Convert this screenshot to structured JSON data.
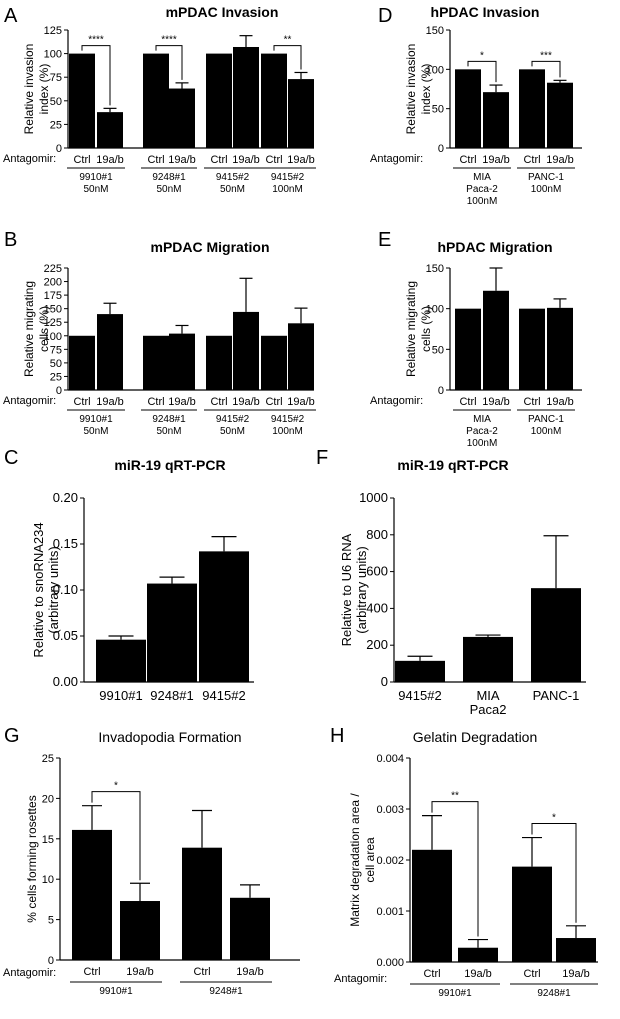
{
  "figure": {
    "antagomir_label": "Antagomir:"
  },
  "chart_data": [
    {
      "panel": "A",
      "type": "bar",
      "title": "mPDAC Invasion",
      "ylabel": "Relative invasion index (%)",
      "ylim": [
        0,
        125
      ],
      "yticks": [
        0,
        25,
        50,
        75,
        100,
        125
      ],
      "categories": [
        "Ctrl",
        "19a/b",
        "Ctrl",
        "19a/b",
        "Ctrl",
        "19a/b",
        "Ctrl",
        "19a/b"
      ],
      "values": [
        100,
        38,
        100,
        63,
        100,
        107,
        100,
        73
      ],
      "errors": [
        0,
        4,
        0,
        6,
        0,
        12,
        0,
        7
      ],
      "groups": [
        {
          "label": "9910#1 50nM",
          "sig": "****"
        },
        {
          "label": "9248#1 50nM",
          "sig": "****"
        },
        {
          "label": "9415#2 50nM",
          "sig": ""
        },
        {
          "label": "9415#2 100nM",
          "sig": "**"
        }
      ]
    },
    {
      "panel": "D",
      "type": "bar",
      "title": "hPDAC Invasion",
      "ylabel": "Relative invasion index (%)",
      "ylim": [
        0,
        150
      ],
      "yticks": [
        0,
        50,
        100,
        150
      ],
      "categories": [
        "Ctrl",
        "19a/b",
        "Ctrl",
        "19a/b"
      ],
      "values": [
        100,
        71,
        100,
        83
      ],
      "errors": [
        0,
        9,
        0,
        3
      ],
      "groups": [
        {
          "label": "MIA Paca-2 100nM",
          "sig": "*"
        },
        {
          "label": "PANC-1 100nM",
          "sig": "***"
        }
      ]
    },
    {
      "panel": "B",
      "type": "bar",
      "title": "mPDAC Migration",
      "ylabel": "Relative migrating cells (%)",
      "ylim": [
        0,
        225
      ],
      "yticks": [
        0,
        25,
        50,
        75,
        100,
        125,
        150,
        175,
        200,
        225
      ],
      "categories": [
        "Ctrl",
        "19a/b",
        "Ctrl",
        "19a/b",
        "Ctrl",
        "19a/b",
        "Ctrl",
        "19a/b"
      ],
      "values": [
        100,
        140,
        100,
        104,
        100,
        144,
        100,
        123
      ],
      "errors": [
        0,
        20,
        0,
        15,
        0,
        62,
        0,
        28
      ],
      "groups": [
        {
          "label": "9910#1 50nM",
          "sig": ""
        },
        {
          "label": "9248#1 50nM",
          "sig": ""
        },
        {
          "label": "9415#2 50nM",
          "sig": ""
        },
        {
          "label": "9415#2 100nM",
          "sig": ""
        }
      ]
    },
    {
      "panel": "E",
      "type": "bar",
      "title": "hPDAC Migration",
      "ylabel": "Relative migrating cells (%)",
      "ylim": [
        0,
        150
      ],
      "yticks": [
        0,
        50,
        100,
        150
      ],
      "categories": [
        "Ctrl",
        "19a/b",
        "Ctrl",
        "19a/b"
      ],
      "values": [
        100,
        122,
        100,
        101
      ],
      "errors": [
        0,
        28,
        0,
        11
      ],
      "groups": [
        {
          "label": "MIA Paca-2 100nM",
          "sig": ""
        },
        {
          "label": "PANC-1 100nM",
          "sig": ""
        }
      ]
    },
    {
      "panel": "C",
      "type": "bar",
      "title": "miR-19 qRT-PCR",
      "ylabel": "Relative to snoRNA234 (arbitrary units)",
      "ylim": [
        0,
        0.2
      ],
      "yticks": [
        0,
        0.05,
        0.1,
        0.15,
        0.2
      ],
      "ytick_labels": [
        "0.00",
        "0.05",
        "0.10",
        "0.15",
        "0.20"
      ],
      "categories": [
        "9910#1",
        "9248#1",
        "9415#2"
      ],
      "values": [
        0.046,
        0.107,
        0.142
      ],
      "errors": [
        0.004,
        0.007,
        0.016
      ]
    },
    {
      "panel": "F",
      "type": "bar",
      "title": "miR-19 qRT-PCR",
      "ylabel": "Relative to U6 RNA (arbitrary units)",
      "ylim": [
        0,
        1000
      ],
      "yticks": [
        0,
        200,
        400,
        600,
        800,
        1000
      ],
      "categories": [
        "9415#2",
        "MIA Paca2",
        "PANC-1"
      ],
      "values": [
        115,
        245,
        510
      ],
      "errors": [
        25,
        10,
        285
      ]
    },
    {
      "panel": "G",
      "type": "bar",
      "title": "Invadopodia Formation",
      "ylabel": "% cells forming rosettes",
      "ylim": [
        0,
        25
      ],
      "yticks": [
        0,
        5,
        10,
        15,
        20,
        25
      ],
      "categories": [
        "Ctrl",
        "19a/b",
        "Ctrl",
        "19a/b"
      ],
      "values": [
        16.1,
        7.3,
        13.9,
        7.7
      ],
      "errors": [
        3.0,
        2.2,
        4.6,
        1.6
      ],
      "groups": [
        {
          "label": "9910#1",
          "sig": "*"
        },
        {
          "label": "9248#1",
          "sig": ""
        }
      ]
    },
    {
      "panel": "H",
      "type": "bar",
      "title": "Gelatin  Degradation",
      "ylabel": "Matrix degradation area / cell area",
      "ylim": [
        0,
        0.004
      ],
      "yticks": [
        0,
        0.001,
        0.002,
        0.003,
        0.004
      ],
      "ytick_labels": [
        "0.000",
        "0.001",
        "0.002",
        "0.003",
        "0.004"
      ],
      "categories": [
        "Ctrl",
        "19a/b",
        "Ctrl",
        "19a/b"
      ],
      "values": [
        0.0022,
        0.00028,
        0.00187,
        0.00047
      ],
      "errors": [
        0.00067,
        0.00016,
        0.00057,
        0.00024
      ],
      "groups": [
        {
          "label": "9910#1",
          "sig": "**"
        },
        {
          "label": "9248#1",
          "sig": "*"
        }
      ]
    }
  ]
}
